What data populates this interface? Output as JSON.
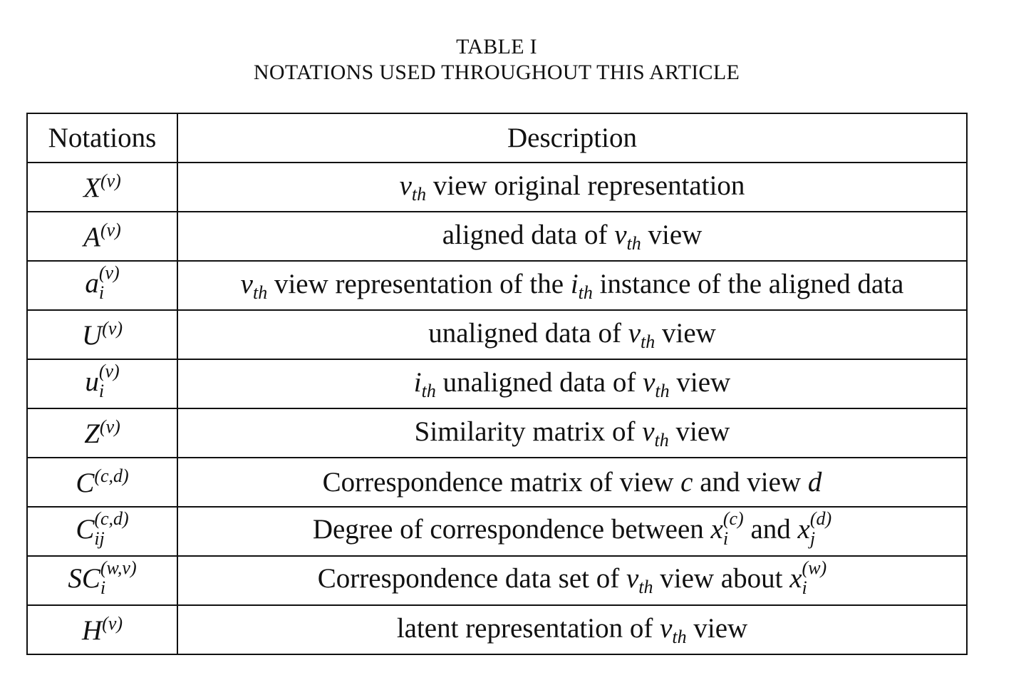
{
  "caption": {
    "line1": "TABLE I",
    "line2": "NOTATIONS USED THROUGHOUT THIS ARTICLE"
  },
  "table": {
    "headers": [
      "Notations",
      "Description"
    ],
    "rows": [
      {
        "sym": "X",
        "sup": "(v)",
        "sub": "",
        "desc": [
          {
            "t": "v",
            "m": true
          },
          {
            "t": "th",
            "sub": true
          },
          {
            "t": " view original representation"
          }
        ]
      },
      {
        "sym": "A",
        "sup": "(v)",
        "sub": "",
        "desc": [
          {
            "t": "aligned data of "
          },
          {
            "t": "v",
            "m": true
          },
          {
            "t": "th",
            "sub": true
          },
          {
            "t": " view"
          }
        ]
      },
      {
        "sym": "a",
        "sup": "(v)",
        "sub": "i",
        "desc": [
          {
            "t": "v",
            "m": true
          },
          {
            "t": "th",
            "sub": true
          },
          {
            "t": " view representation of the "
          },
          {
            "t": "i",
            "m": true
          },
          {
            "t": "th",
            "sub": true
          },
          {
            "t": " instance of the aligned data"
          }
        ]
      },
      {
        "sym": "U",
        "sup": "(v)",
        "sub": "",
        "desc": [
          {
            "t": "unaligned data of "
          },
          {
            "t": "v",
            "m": true
          },
          {
            "t": "th",
            "sub": true
          },
          {
            "t": " view"
          }
        ]
      },
      {
        "sym": "u",
        "sup": "(v)",
        "sub": "i",
        "desc": [
          {
            "t": "i",
            "m": true
          },
          {
            "t": "th",
            "sub": true
          },
          {
            "t": " unaligned data of "
          },
          {
            "t": "v",
            "m": true
          },
          {
            "t": "th",
            "sub": true
          },
          {
            "t": " view"
          }
        ]
      },
      {
        "sym": "Z",
        "sup": "(v)",
        "sub": "",
        "desc": [
          {
            "t": "Similarity matrix of "
          },
          {
            "t": "v",
            "m": true
          },
          {
            "t": "th",
            "sub": true
          },
          {
            "t": " view"
          }
        ]
      },
      {
        "sym": "C",
        "sup": "(c,d)",
        "sub": "",
        "desc": [
          {
            "t": "Correspondence matrix of view "
          },
          {
            "t": "c",
            "m": true
          },
          {
            "t": " and view "
          },
          {
            "t": "d",
            "m": true
          }
        ]
      },
      {
        "sym": "C",
        "sup": "(c,d)",
        "sub": "ij",
        "desc": [
          {
            "t": "Degree of correspondence between "
          },
          {
            "t": "x",
            "m": true,
            "sup": "(c)",
            "sub": "i"
          },
          {
            "t": " and "
          },
          {
            "t": "x",
            "m": true,
            "sup": "(d)",
            "sub": "j"
          }
        ]
      },
      {
        "sym": "SC",
        "sup": "(w,v)",
        "sub": "i",
        "desc": [
          {
            "t": "Correspondence data set of "
          },
          {
            "t": "v",
            "m": true
          },
          {
            "t": "th",
            "sub": true
          },
          {
            "t": " view about "
          },
          {
            "t": "x",
            "m": true,
            "sup": "(w)",
            "sub": "i"
          }
        ]
      },
      {
        "sym": "H",
        "sup": "(v)",
        "sub": "",
        "desc": [
          {
            "t": "latent representation of "
          },
          {
            "t": "v",
            "m": true
          },
          {
            "t": "th",
            "sub": true
          },
          {
            "t": " view"
          }
        ]
      }
    ]
  }
}
